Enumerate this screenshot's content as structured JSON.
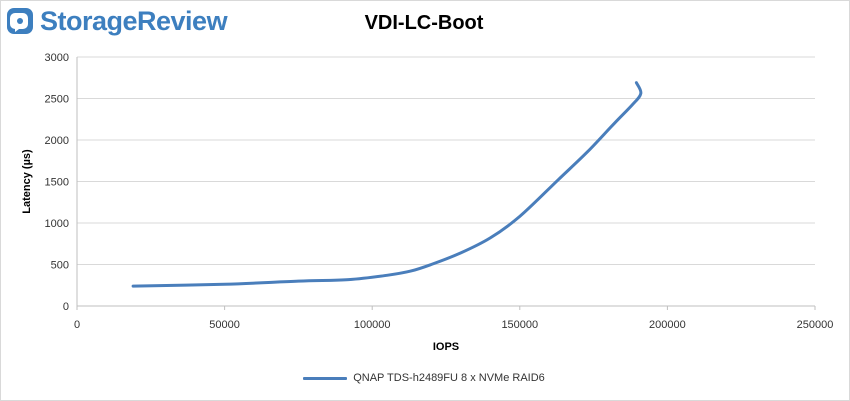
{
  "brand": {
    "name": "StorageReview",
    "color": "#3d7fbf"
  },
  "chart_data": {
    "type": "line",
    "title": "VDI-LC-Boot",
    "xlabel": "IOPS",
    "ylabel": "Latency (µs)",
    "xlim": [
      0,
      250000
    ],
    "ylim": [
      0,
      3000
    ],
    "xticks": [
      0,
      50000,
      100000,
      150000,
      200000,
      250000
    ],
    "yticks": [
      0,
      500,
      1000,
      1500,
      2000,
      2500,
      3000
    ],
    "grid": "horizontal",
    "legend_position": "bottom",
    "series": [
      {
        "name": "QNAP TDS-h2489FU 8 x NVMe RAID6",
        "color": "#4a7ebb",
        "points": [
          [
            19000,
            240
          ],
          [
            50000,
            262
          ],
          [
            75000,
            300
          ],
          [
            92000,
            318
          ],
          [
            105000,
            370
          ],
          [
            113000,
            420
          ],
          [
            120000,
            500
          ],
          [
            130000,
            640
          ],
          [
            140000,
            820
          ],
          [
            150000,
            1080
          ],
          [
            163000,
            1520
          ],
          [
            173000,
            1860
          ],
          [
            182000,
            2200
          ],
          [
            188000,
            2420
          ],
          [
            191000,
            2560
          ],
          [
            189500,
            2690
          ]
        ]
      }
    ]
  }
}
